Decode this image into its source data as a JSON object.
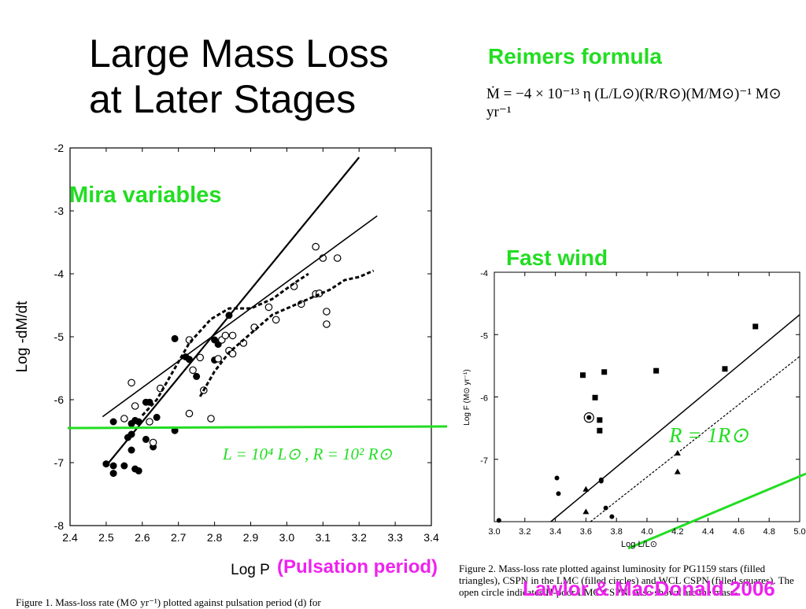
{
  "slide": {
    "title": "Large Mass Loss\nat Later Stages",
    "reimers_label": "Reimers formula",
    "formula": "Ṁ = −4 × 10⁻¹³ η (L/L⊙)(R/R⊙)(M/M⊙)⁻¹ M⊙ yr⁻¹",
    "mira_label": "Mira variables",
    "fast_wind_label": "Fast wind",
    "pulsation_label": "(Pulsation period)",
    "credit": "Lawlor & MacDonald 2006",
    "caption_right": "Figure 2. Mass-loss rate plotted against luminosity for PG1159 stars (filled triangles), CSPN in the LMC (filled circles) and WCL CSPN (filled squares). The open circle indicates H-poor LMC CSPN. Also shown are the mass-",
    "caption_left": "Figure 1. Mass-loss rate (M⊙ yr⁻¹) plotted against pulsation period (d) for"
  },
  "colors": {
    "accent_green": "#22dd22",
    "accent_magenta": "#ee22ee"
  },
  "chart_data": [
    {
      "type": "scatter",
      "xlabel": "Log P",
      "ylabel": "Log -dM/dt",
      "xlim": [
        2.4,
        3.4
      ],
      "ylim": [
        -8,
        -2
      ],
      "xticks": [
        "2.4",
        "2.5",
        "2.6",
        "2.7",
        "2.8",
        "2.9",
        "3.0",
        "3.1",
        "3.2",
        "3.3",
        "3.4"
      ],
      "yticks": [
        "-2",
        "-3",
        "-4",
        "-5",
        "-6",
        "-7",
        "-8"
      ],
      "annotation": "L = 10⁴ L⊙ , R = 10² R⊙",
      "reference_level": -6.45,
      "series": [
        {
          "marker": "filled-circle",
          "points": [
            [
              2.5,
              -7.02
            ],
            [
              2.52,
              -7.05
            ],
            [
              2.52,
              -7.17
            ],
            [
              2.52,
              -6.35
            ],
            [
              2.55,
              -7.05
            ],
            [
              2.56,
              -6.6
            ],
            [
              2.57,
              -6.55
            ],
            [
              2.57,
              -6.38
            ],
            [
              2.57,
              -6.8
            ],
            [
              2.58,
              -7.1
            ],
            [
              2.59,
              -7.13
            ],
            [
              2.58,
              -6.33
            ],
            [
              2.59,
              -6.35
            ],
            [
              2.61,
              -6.63
            ],
            [
              2.61,
              -6.04
            ],
            [
              2.62,
              -6.04
            ],
            [
              2.63,
              -6.75
            ],
            [
              2.64,
              -6.28
            ],
            [
              2.69,
              -6.49
            ],
            [
              2.69,
              -5.03
            ],
            [
              2.72,
              -5.32
            ],
            [
              2.73,
              -5.36
            ],
            [
              2.75,
              -5.63
            ],
            [
              2.8,
              -5.37
            ],
            [
              2.8,
              -5.05
            ],
            [
              2.81,
              -5.12
            ],
            [
              2.82,
              -5.05
            ],
            [
              2.84,
              -4.66
            ]
          ]
        },
        {
          "marker": "open-circle",
          "points": [
            [
              2.55,
              -6.3
            ],
            [
              2.57,
              -5.73
            ],
            [
              2.58,
              -6.1
            ],
            [
              2.62,
              -6.35
            ],
            [
              2.63,
              -6.68
            ],
            [
              2.65,
              -5.82
            ],
            [
              2.73,
              -5.05
            ],
            [
              2.74,
              -5.53
            ],
            [
              2.73,
              -6.22
            ],
            [
              2.76,
              -5.33
            ],
            [
              2.77,
              -5.85
            ],
            [
              2.79,
              -6.3
            ],
            [
              2.81,
              -5.35
            ],
            [
              2.82,
              -5.05
            ],
            [
              2.83,
              -4.98
            ],
            [
              2.84,
              -5.22
            ],
            [
              2.85,
              -5.27
            ],
            [
              2.85,
              -4.98
            ],
            [
              2.88,
              -5.1
            ],
            [
              2.91,
              -4.85
            ],
            [
              2.95,
              -4.53
            ],
            [
              2.97,
              -4.73
            ],
            [
              3.02,
              -4.2
            ],
            [
              3.04,
              -4.48
            ],
            [
              3.08,
              -4.32
            ],
            [
              3.09,
              -4.31
            ],
            [
              3.08,
              -3.57
            ],
            [
              3.1,
              -3.75
            ],
            [
              3.11,
              -4.6
            ],
            [
              3.11,
              -4.8
            ],
            [
              3.14,
              -3.75
            ]
          ]
        },
        {
          "line": "solid-steep",
          "points": [
            [
              2.5,
              -7.05
            ],
            [
              3.2,
              -2.15
            ]
          ]
        },
        {
          "line": "solid-shallow",
          "points": [
            [
              2.49,
              -6.27
            ],
            [
              3.25,
              -3.08
            ]
          ]
        },
        {
          "line": "dashed-upper",
          "points": [
            [
              2.6,
              -6.25
            ],
            [
              2.64,
              -6.0
            ],
            [
              2.68,
              -5.6
            ],
            [
              2.73,
              -5.1
            ],
            [
              2.79,
              -4.72
            ],
            [
              2.84,
              -4.55
            ],
            [
              2.9,
              -4.55
            ],
            [
              2.96,
              -4.4
            ],
            [
              3.02,
              -4.15
            ],
            [
              3.06,
              -4.0
            ]
          ]
        },
        {
          "line": "dashed-lower",
          "points": [
            [
              2.76,
              -5.95
            ],
            [
              2.8,
              -5.55
            ],
            [
              2.84,
              -5.25
            ],
            [
              2.88,
              -5.05
            ],
            [
              2.92,
              -4.85
            ],
            [
              2.96,
              -4.65
            ],
            [
              3.0,
              -4.55
            ],
            [
              3.04,
              -4.45
            ],
            [
              3.08,
              -4.35
            ],
            [
              3.12,
              -4.25
            ],
            [
              3.16,
              -4.1
            ],
            [
              3.2,
              -4.05
            ],
            [
              3.24,
              -3.95
            ]
          ]
        }
      ]
    },
    {
      "type": "scatter",
      "xlabel": "Log L/L⊙",
      "ylabel": "Log F (M⊙ yr⁻¹)",
      "xlim": [
        3.0,
        5.0
      ],
      "ylim": [
        -8,
        -4
      ],
      "xticks": [
        "3.0",
        "3.2",
        "3.4",
        "3.6",
        "3.8",
        "4.0",
        "4.2",
        "4.4",
        "4.6",
        "4.8",
        "5.0"
      ],
      "yticks": [
        "-4",
        "-5",
        "-6",
        "-7"
      ],
      "annotation": "R = 1R⊙",
      "series": [
        {
          "marker": "filled-square",
          "points": [
            [
              3.58,
              -5.65
            ],
            [
              3.66,
              -6.01
            ],
            [
              3.69,
              -6.37
            ],
            [
              3.69,
              -6.54
            ],
            [
              3.72,
              -5.6
            ],
            [
              4.06,
              -5.58
            ],
            [
              4.51,
              -5.55
            ],
            [
              4.71,
              -4.87
            ]
          ]
        },
        {
          "marker": "filled-circle",
          "points": [
            [
              3.03,
              -7.98
            ],
            [
              3.41,
              -7.3
            ],
            [
              3.42,
              -7.55
            ],
            [
              3.7,
              -7.35
            ],
            [
              3.7,
              -7.33
            ],
            [
              3.73,
              -7.78
            ],
            [
              3.77,
              -7.92
            ]
          ]
        },
        {
          "marker": "filled-triangle",
          "points": [
            [
              3.6,
              -7.48
            ],
            [
              3.6,
              -7.84
            ],
            [
              4.2,
              -6.9
            ],
            [
              4.2,
              -7.2
            ]
          ]
        },
        {
          "marker": "ringed-dot",
          "points": [
            [
              3.62,
              -6.33
            ]
          ]
        },
        {
          "line": "solid",
          "points": [
            [
              3.37,
              -8.0
            ],
            [
              5.0,
              -4.68
            ]
          ]
        },
        {
          "line": "dotted",
          "points": [
            [
              3.63,
              -8.0
            ],
            [
              5.0,
              -5.35
            ]
          ]
        }
      ]
    }
  ]
}
